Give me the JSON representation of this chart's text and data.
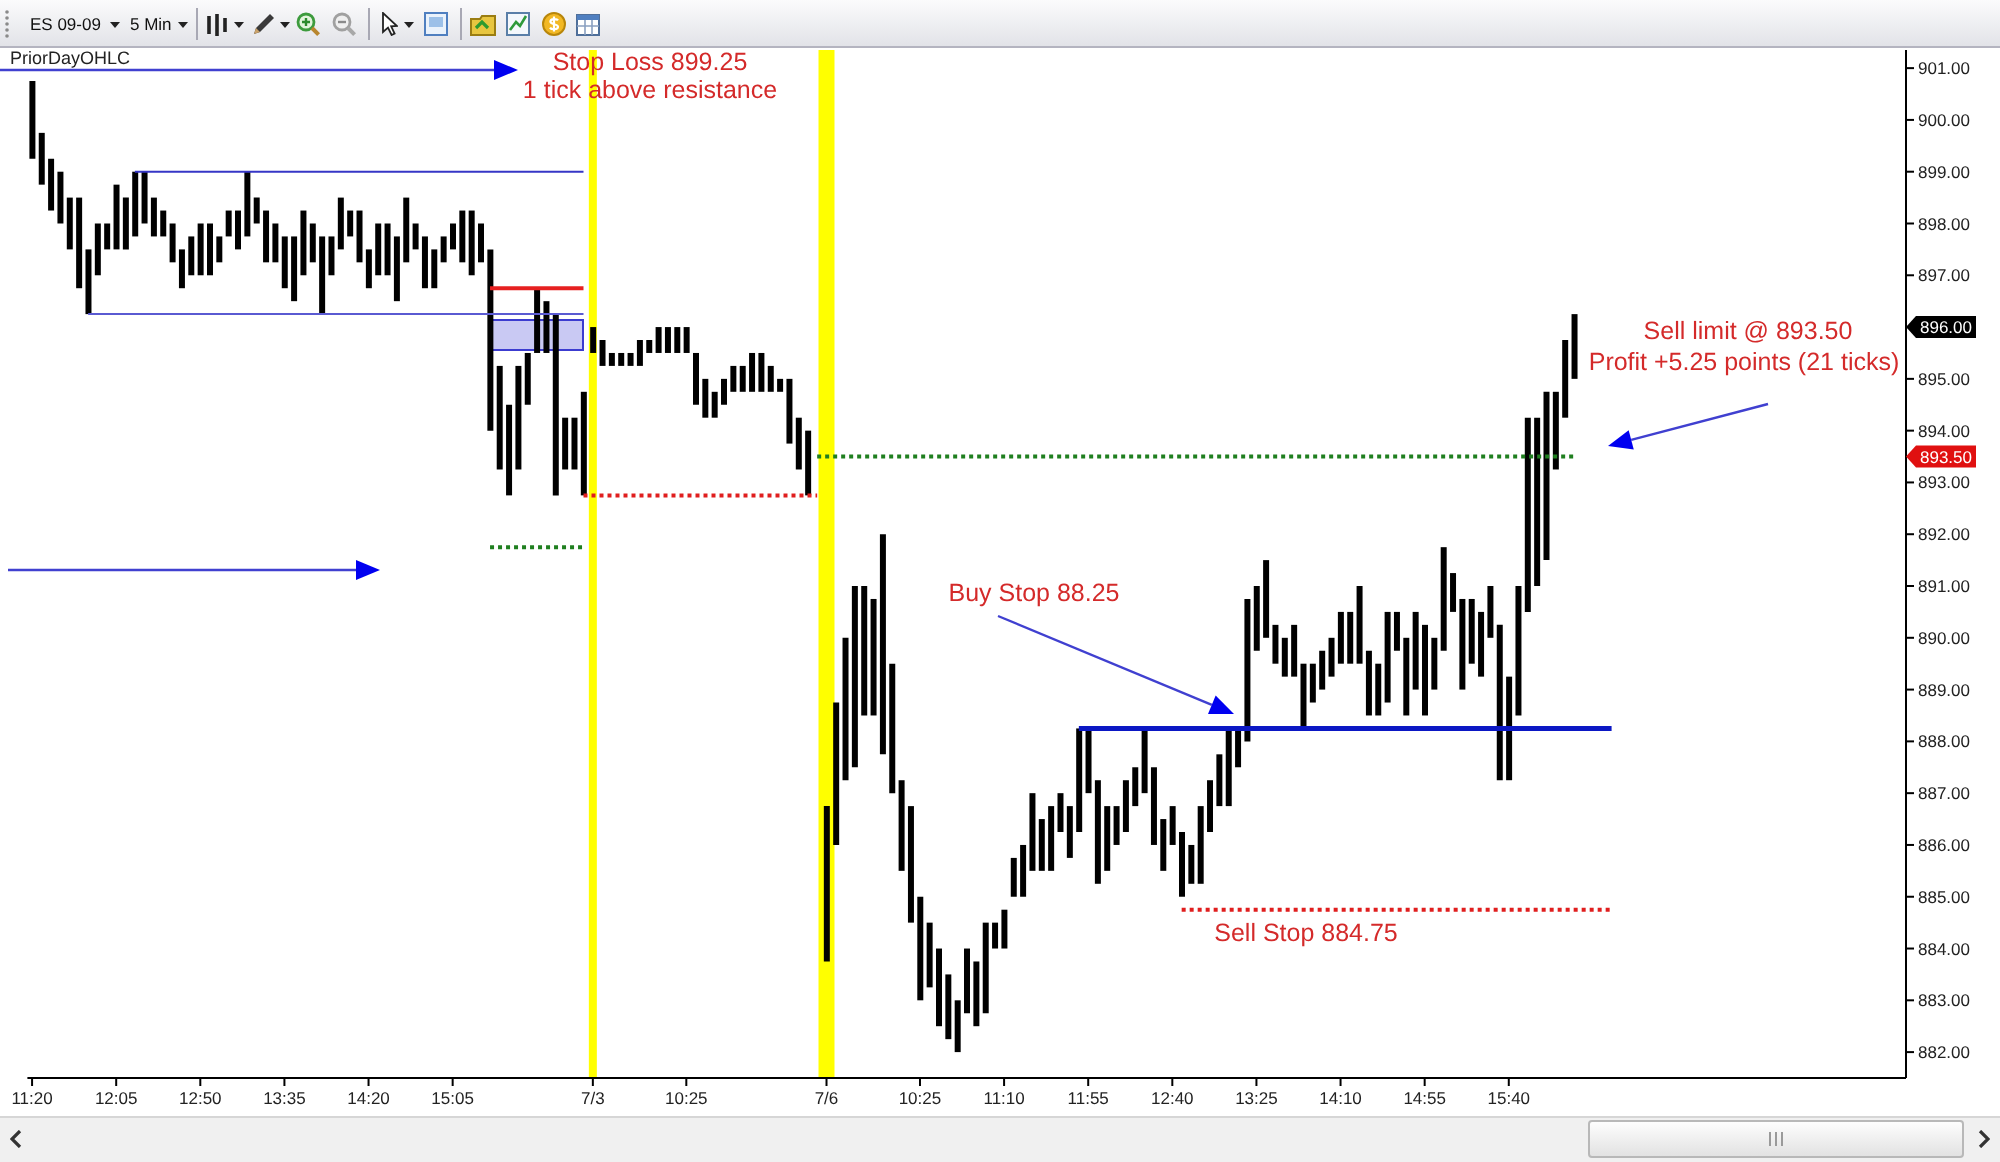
{
  "chart_data": {
    "type": "bar",
    "categories": [
      "11:20",
      null,
      null,
      null,
      null,
      null,
      null,
      null,
      null,
      "12:05",
      null,
      null,
      null,
      null,
      null,
      null,
      null,
      null,
      "12:50",
      null,
      null,
      null,
      null,
      null,
      null,
      null,
      null,
      "13:35",
      null,
      null,
      null,
      null,
      null,
      null,
      null,
      null,
      "14:20",
      null,
      null,
      null,
      null,
      null,
      null,
      null,
      null,
      "15:05",
      null,
      null,
      null,
      null,
      null,
      null,
      null,
      null,
      null,
      null,
      null,
      null,
      null,
      null,
      "7/3",
      null,
      null,
      null,
      null,
      null,
      null,
      null,
      null,
      null,
      "10:25",
      null,
      null,
      null,
      null,
      null,
      null,
      null,
      null,
      null,
      null,
      null,
      null,
      null,
      null,
      "7/6",
      null,
      null,
      null,
      null,
      null,
      null,
      null,
      null,
      null,
      "10:25",
      null,
      null,
      null,
      null,
      null,
      null,
      null,
      null,
      "11:10",
      null,
      null,
      null,
      null,
      null,
      null,
      null,
      null,
      "11:55",
      null,
      null,
      null,
      null,
      null,
      null,
      null,
      null,
      "12:40",
      null,
      null,
      null,
      null,
      null,
      null,
      null,
      null,
      "13:25",
      null,
      null,
      null,
      null,
      null,
      null,
      null,
      null,
      "14:10",
      null,
      null,
      null,
      null,
      null,
      null,
      null,
      null,
      "14:55",
      null,
      null,
      null,
      null,
      null,
      null,
      null,
      null,
      "15:40",
      null,
      null,
      null,
      null,
      null,
      null,
      null,
      null,
      null,
      null,
      null,
      null,
      null,
      null,
      null,
      null,
      null,
      null,
      null,
      null,
      null,
      null,
      null,
      null,
      null,
      null,
      null,
      null,
      null,
      null,
      null,
      null,
      null,
      null,
      null,
      null,
      null,
      null,
      null,
      null,
      null,
      null
    ],
    "series": [
      {
        "color": "#000000",
        "base": [
          899.25,
          898.75,
          898.25,
          898,
          897.5,
          896.75,
          896.25,
          897,
          897.5,
          897.5,
          897.5,
          897.75,
          898,
          897.75,
          897.75,
          897.25,
          896.75,
          897,
          897,
          897,
          897.25,
          897.75,
          897.5,
          897.75,
          898,
          897.25,
          897.25,
          896.75,
          896.5,
          897,
          897.25,
          896.25,
          897,
          897.5,
          897.75,
          897.25,
          896.75,
          897,
          897,
          896.5,
          897.25,
          897.5,
          896.75,
          896.75,
          897.25,
          897.5,
          897.25,
          897,
          897.25,
          894,
          893.25,
          892.75,
          893.25,
          894.5,
          895.5,
          895.5,
          892.75,
          893.25,
          893.25,
          892.75,
          895.5,
          895.25,
          895.25,
          895.25,
          895.25,
          895.25,
          895.5,
          895.5,
          895.5,
          895.5,
          895.5,
          894.5,
          894.25,
          894.25,
          894.5,
          894.75,
          894.75,
          894.75,
          894.75,
          894.75,
          894.75,
          893.75,
          893.25,
          892.75,
          null,
          883.75,
          886,
          887.25,
          887.5,
          888.5,
          888.5,
          887.75,
          887,
          885.5,
          884.5,
          883,
          883.25,
          882.5,
          882.25,
          882,
          882.75,
          882.5,
          882.75,
          884,
          884,
          885,
          885,
          885.5,
          885.5,
          885.5,
          886.25,
          885.75,
          886.25,
          887,
          885.25,
          885.5,
          886,
          886.25,
          886.75,
          887,
          886,
          885.5,
          886,
          885,
          885.25,
          885.25,
          886.25,
          886.75,
          886.75,
          887.5,
          888,
          889.75,
          890,
          889.5,
          889.25,
          889.25,
          888.25,
          888.75,
          889,
          889.25,
          889.5,
          889.5,
          889.5,
          888.5,
          888.5,
          888.75,
          889.75,
          888.5,
          889,
          888.5,
          889,
          889.75,
          890.5,
          889,
          889.5,
          889.25,
          890,
          887.25,
          887.25,
          888.5,
          890.5,
          891,
          891.5,
          893.25,
          894.25,
          895,
          null,
          null,
          null,
          null,
          null,
          null,
          null,
          null,
          null,
          null,
          null,
          null,
          null,
          null,
          null,
          null,
          null,
          null,
          null,
          null,
          null,
          null,
          null,
          null,
          null,
          null,
          null,
          null,
          null,
          null,
          null,
          null,
          null,
          null,
          null
        ],
        "values": [
          1.5,
          1,
          1,
          1,
          1,
          1.75,
          1.25,
          1,
          0.5,
          1.25,
          1,
          1.25,
          1,
          0.75,
          0.5,
          0.75,
          0.75,
          0.75,
          1,
          1,
          0.5,
          0.5,
          0.75,
          1.25,
          0.5,
          1,
          0.75,
          1,
          1.25,
          1.25,
          0.75,
          1.5,
          0.75,
          1,
          0.5,
          1,
          0.75,
          1,
          1,
          1.25,
          1.25,
          0.5,
          1,
          0.75,
          0.5,
          0.5,
          1,
          1.25,
          0.75,
          3.5,
          2,
          1.75,
          2,
          1,
          1.25,
          1,
          3.5,
          1,
          1,
          2,
          0.5,
          0.5,
          0.25,
          0.25,
          0.25,
          0.5,
          0.25,
          0.5,
          0.5,
          0.5,
          0.5,
          1,
          0.75,
          0.5,
          0.5,
          0.5,
          0.5,
          0.75,
          0.75,
          0.5,
          0.25,
          1.25,
          1,
          1.25,
          null,
          3,
          2.75,
          2.75,
          3.5,
          2.5,
          2.25,
          4.25,
          2.5,
          1.75,
          2.25,
          2,
          1.25,
          1.5,
          1.25,
          1,
          1.25,
          1.25,
          1.75,
          0.5,
          0.75,
          0.75,
          1,
          1.5,
          1,
          1.25,
          0.75,
          1,
          2,
          1.25,
          2,
          1.25,
          0.75,
          1,
          0.75,
          1.25,
          1.5,
          1,
          0.75,
          1.25,
          0.75,
          1.5,
          1,
          1,
          1.5,
          0.75,
          2.75,
          1.25,
          1.5,
          0.75,
          0.75,
          1,
          1.25,
          0.75,
          0.75,
          0.75,
          1,
          1,
          1.5,
          1.25,
          1,
          1.75,
          0.75,
          1.5,
          1.5,
          1.75,
          1,
          2,
          0.75,
          1.75,
          1.25,
          1.25,
          1,
          3,
          2,
          2.5,
          3.75,
          3.25,
          3.25,
          1.5,
          1.5,
          1.25,
          null,
          null,
          null,
          null,
          null,
          null,
          null,
          null,
          null,
          null,
          null,
          null,
          null,
          null,
          null,
          null,
          null,
          null,
          null,
          null,
          null,
          null,
          null,
          null,
          null,
          null,
          null,
          null,
          null,
          null,
          null,
          null,
          null,
          null,
          null
        ]
      },
      {
        "type": "line",
        "color": "#3636c6",
        "line_style": "solid",
        "values": [
          null,
          null,
          null,
          null,
          null,
          null,
          null,
          null,
          null,
          null,
          null,
          899,
          899,
          899,
          899,
          899,
          899,
          899,
          899,
          899,
          899,
          899,
          899,
          899,
          899,
          899,
          899,
          899,
          899,
          899,
          899,
          899,
          899,
          899,
          899,
          899,
          899,
          899,
          899,
          899,
          899,
          899,
          899,
          899,
          899,
          899,
          899,
          899,
          899,
          899,
          899,
          899,
          899,
          899,
          899,
          899,
          899,
          899,
          899,
          899,
          null,
          null,
          null,
          null,
          null,
          null,
          null,
          null,
          null,
          null,
          null,
          null,
          null,
          null,
          null,
          null,
          null,
          null,
          null,
          null,
          null,
          null,
          null,
          null,
          null,
          null,
          null,
          null,
          null,
          null,
          null,
          null,
          null,
          null,
          null,
          null,
          null,
          null,
          null,
          null,
          null,
          null,
          null,
          null,
          null,
          null,
          null,
          null,
          null,
          null,
          null,
          null,
          null,
          null,
          null,
          null,
          null,
          null,
          null,
          null,
          null,
          null,
          null,
          null,
          null,
          null,
          null,
          null,
          null,
          null,
          null,
          null,
          null,
          null,
          null,
          null,
          null,
          null,
          null,
          null,
          null,
          null,
          null,
          null,
          null,
          null,
          null,
          null,
          null,
          null,
          null,
          null,
          null,
          null,
          null,
          null,
          null,
          null,
          null,
          null,
          null,
          null,
          null,
          null,
          null,
          null,
          null,
          null,
          null,
          null,
          null,
          null,
          null,
          null,
          null,
          null,
          null,
          null,
          null,
          null,
          null,
          null,
          null,
          null,
          null,
          null,
          null,
          null,
          null,
          null,
          null,
          null,
          null,
          null,
          null,
          null,
          null,
          null,
          null,
          null,
          null
        ]
      },
      {
        "type": "line",
        "color": "#5a5ad2",
        "line_style": "solid",
        "values": [
          null,
          null,
          null,
          null,
          null,
          null,
          896.25,
          896.25,
          896.25,
          896.25,
          896.25,
          896.25,
          896.25,
          896.25,
          896.25,
          896.25,
          896.25,
          896.25,
          896.25,
          896.25,
          896.25,
          896.25,
          896.25,
          896.25,
          896.25,
          896.25,
          896.25,
          896.25,
          896.25,
          896.25,
          896.25,
          896.25,
          896.25,
          896.25,
          896.25,
          896.25,
          896.25,
          896.25,
          896.25,
          896.25,
          896.25,
          896.25,
          896.25,
          896.25,
          896.25,
          896.25,
          896.25,
          896.25,
          896.25,
          896.25,
          896.25,
          896.25,
          896.25,
          896.25,
          896.25,
          896.25,
          896.25,
          896.25,
          896.25,
          896.25,
          null,
          null,
          null,
          null,
          null,
          null,
          null,
          null,
          null,
          null,
          null,
          null,
          null,
          null,
          null,
          null,
          null,
          null,
          null,
          null,
          null,
          null,
          null,
          null,
          null,
          null,
          null,
          null,
          null,
          null,
          null,
          null,
          null,
          null,
          null,
          null,
          null,
          null,
          null,
          null,
          null,
          null,
          null,
          null,
          null,
          null,
          null,
          null,
          null,
          null,
          null,
          null,
          null,
          null,
          null,
          null,
          null,
          null,
          null,
          null,
          null,
          null,
          null,
          null,
          null,
          null,
          null,
          null,
          null,
          null,
          null,
          null,
          null,
          null,
          null,
          null,
          null,
          null,
          null,
          null,
          null,
          null,
          null,
          null,
          null,
          null,
          null,
          null,
          null,
          null,
          null,
          null,
          null,
          null,
          null,
          null,
          null,
          null,
          null,
          null,
          null,
          null,
          null,
          null,
          null,
          null,
          null,
          null,
          null,
          null,
          null,
          null,
          null,
          null,
          null,
          null,
          null,
          null,
          null,
          null,
          null,
          null,
          null,
          null,
          null,
          null,
          null,
          null,
          null,
          null,
          null,
          null,
          null,
          null,
          null,
          null,
          null,
          null,
          null,
          null,
          null
        ]
      },
      {
        "type": "line",
        "color": "#e62020",
        "line_style": "solid",
        "values": [
          null,
          null,
          null,
          null,
          null,
          null,
          null,
          null,
          null,
          null,
          null,
          null,
          null,
          null,
          null,
          null,
          null,
          null,
          null,
          null,
          null,
          null,
          null,
          null,
          null,
          null,
          null,
          null,
          null,
          null,
          null,
          null,
          null,
          null,
          null,
          null,
          null,
          null,
          null,
          null,
          null,
          null,
          null,
          null,
          null,
          null,
          null,
          null,
          null,
          896.75,
          896.75,
          896.75,
          896.75,
          896.75,
          896.75,
          896.75,
          896.75,
          896.75,
          896.75,
          896.75,
          null,
          null,
          null,
          null,
          null,
          null,
          null,
          null,
          null,
          null,
          null,
          null,
          null,
          null,
          null,
          null,
          null,
          null,
          null,
          null,
          null,
          null,
          null,
          null,
          null,
          null,
          null,
          null,
          null,
          null,
          null,
          null,
          null,
          null,
          null,
          null,
          null,
          null,
          null,
          null,
          null,
          null,
          null,
          null,
          null,
          null,
          null,
          null,
          null,
          null,
          null,
          null,
          null,
          null,
          null,
          null,
          null,
          null,
          null,
          null,
          null,
          null,
          null,
          null,
          null,
          null,
          null,
          null,
          null,
          null,
          null,
          null,
          null,
          null,
          null,
          null,
          null,
          null,
          null,
          null,
          null,
          null,
          null,
          null,
          null,
          null,
          null,
          null,
          null,
          null,
          null,
          null,
          null,
          null,
          null,
          null,
          null,
          null,
          null,
          null,
          null,
          null,
          null,
          null,
          null,
          null,
          null,
          null,
          null,
          null,
          null,
          null,
          null,
          null,
          null,
          null,
          null,
          null,
          null,
          null,
          null,
          null,
          null,
          null,
          null,
          null,
          null,
          null,
          null,
          null,
          null,
          null,
          null,
          null,
          null,
          null,
          null,
          null,
          null,
          null,
          null
        ]
      },
      {
        "type": "line",
        "color": "#1f7f1f",
        "line_style": "dotted",
        "values": [
          null,
          null,
          null,
          null,
          null,
          null,
          null,
          null,
          null,
          null,
          null,
          null,
          null,
          null,
          null,
          null,
          null,
          null,
          null,
          null,
          null,
          null,
          null,
          null,
          null,
          null,
          null,
          null,
          null,
          null,
          null,
          null,
          null,
          null,
          null,
          null,
          null,
          null,
          null,
          null,
          null,
          null,
          null,
          null,
          null,
          null,
          null,
          null,
          null,
          891.75,
          891.75,
          891.75,
          891.75,
          891.75,
          891.75,
          891.75,
          891.75,
          891.75,
          891.75,
          891.75,
          null,
          null,
          null,
          null,
          null,
          null,
          null,
          null,
          null,
          null,
          null,
          null,
          null,
          null,
          null,
          null,
          null,
          null,
          null,
          null,
          null,
          null,
          null,
          null,
          null,
          null,
          null,
          null,
          null,
          null,
          null,
          null,
          null,
          null,
          null,
          null,
          null,
          null,
          null,
          null,
          null,
          null,
          null,
          null,
          null,
          null,
          null,
          null,
          null,
          null,
          null,
          null,
          null,
          null,
          null,
          null,
          null,
          null,
          null,
          null,
          null,
          null,
          null,
          null,
          null,
          null,
          null,
          null,
          null,
          null,
          null,
          null,
          null,
          null,
          null,
          null,
          null,
          null,
          null,
          null,
          null,
          null,
          null,
          null,
          null,
          null,
          null,
          null,
          null,
          null,
          null,
          null,
          null,
          null,
          null,
          null,
          null,
          null,
          null,
          null,
          null,
          null,
          null,
          null,
          null,
          null,
          null,
          null,
          null,
          null,
          null,
          null,
          null,
          null,
          null,
          null,
          null,
          null,
          null,
          null,
          null,
          null,
          null,
          null,
          null,
          null,
          null,
          null,
          null,
          null,
          null,
          null,
          null,
          null,
          null,
          null,
          null,
          null,
          null,
          null,
          null
        ]
      },
      {
        "type": "line",
        "color": "#e01e1e",
        "line_style": "dotted",
        "values": [
          null,
          null,
          null,
          null,
          null,
          null,
          null,
          null,
          null,
          null,
          null,
          null,
          null,
          null,
          null,
          null,
          null,
          null,
          null,
          null,
          null,
          null,
          null,
          null,
          null,
          null,
          null,
          null,
          null,
          null,
          null,
          null,
          null,
          null,
          null,
          null,
          null,
          null,
          null,
          null,
          null,
          null,
          null,
          null,
          null,
          null,
          null,
          null,
          null,
          null,
          null,
          null,
          null,
          null,
          null,
          null,
          null,
          null,
          null,
          892.75,
          892.75,
          892.75,
          892.75,
          892.75,
          892.75,
          892.75,
          892.75,
          892.75,
          892.75,
          892.75,
          892.75,
          892.75,
          892.75,
          892.75,
          892.75,
          892.75,
          892.75,
          892.75,
          892.75,
          892.75,
          892.75,
          892.75,
          892.75,
          892.75,
          892.75,
          null,
          null,
          null,
          null,
          null,
          null,
          null,
          null,
          null,
          null,
          null,
          null,
          null,
          null,
          null,
          null,
          null,
          null,
          null,
          null,
          null,
          null,
          null,
          null,
          null,
          null,
          null,
          null,
          null,
          null,
          null,
          null,
          null,
          null,
          null,
          null,
          null,
          null,
          null,
          null,
          null,
          null,
          null,
          null,
          null,
          null,
          null,
          null,
          null,
          null,
          null,
          null,
          null,
          null,
          null,
          null,
          null,
          null,
          null,
          null,
          null,
          null,
          null,
          null,
          null,
          null,
          null,
          null,
          null,
          null,
          null,
          null,
          null,
          null,
          null,
          null,
          null,
          null,
          null,
          null,
          null,
          null,
          null,
          null,
          null,
          null,
          null,
          null,
          null,
          null,
          null,
          null,
          null,
          null,
          null,
          null,
          null,
          null,
          null,
          null,
          null,
          null,
          null,
          null,
          null,
          null,
          null,
          null,
          null,
          null,
          null,
          null,
          null,
          null,
          null,
          null
        ]
      },
      {
        "type": "line",
        "color": "#1f7f1f",
        "line_style": "dotted",
        "values": [
          null,
          null,
          null,
          null,
          null,
          null,
          null,
          null,
          null,
          null,
          null,
          null,
          null,
          null,
          null,
          null,
          null,
          null,
          null,
          null,
          null,
          null,
          null,
          null,
          null,
          null,
          null,
          null,
          null,
          null,
          null,
          null,
          null,
          null,
          null,
          null,
          null,
          null,
          null,
          null,
          null,
          null,
          null,
          null,
          null,
          null,
          null,
          null,
          null,
          null,
          null,
          null,
          null,
          null,
          null,
          null,
          null,
          null,
          null,
          null,
          null,
          null,
          null,
          null,
          null,
          null,
          null,
          null,
          null,
          null,
          null,
          null,
          null,
          null,
          null,
          null,
          null,
          null,
          null,
          null,
          null,
          null,
          null,
          null,
          893.5,
          893.5,
          893.5,
          893.5,
          893.5,
          893.5,
          893.5,
          893.5,
          893.5,
          893.5,
          893.5,
          893.5,
          893.5,
          893.5,
          893.5,
          893.5,
          893.5,
          893.5,
          893.5,
          893.5,
          893.5,
          893.5,
          893.5,
          893.5,
          893.5,
          893.5,
          893.5,
          893.5,
          893.5,
          893.5,
          893.5,
          893.5,
          893.5,
          893.5,
          893.5,
          893.5,
          893.5,
          893.5,
          893.5,
          893.5,
          893.5,
          893.5,
          893.5,
          893.5,
          893.5,
          893.5,
          893.5,
          893.5,
          893.5,
          893.5,
          893.5,
          893.5,
          893.5,
          893.5,
          893.5,
          893.5,
          893.5,
          893.5,
          893.5,
          893.5,
          893.5,
          893.5,
          893.5,
          893.5,
          893.5,
          893.5,
          893.5,
          893.5,
          893.5,
          893.5,
          893.5,
          893.5,
          893.5,
          893.5,
          893.5,
          893.5,
          893.5,
          893.5,
          893.5,
          893.5,
          893.5,
          893.5,
          null,
          null,
          null,
          null,
          null,
          null,
          null,
          null,
          null,
          null,
          null,
          null,
          null,
          null,
          null,
          null,
          null,
          null,
          null,
          null,
          null,
          null,
          null,
          null,
          null,
          null,
          null,
          null,
          null,
          null,
          null,
          null,
          null,
          null,
          null
        ]
      },
      {
        "type": "line",
        "color": "#0b17c4",
        "line_style": "solid",
        "values": [
          null,
          null,
          null,
          null,
          null,
          null,
          null,
          null,
          null,
          null,
          null,
          null,
          null,
          null,
          null,
          null,
          null,
          null,
          null,
          null,
          null,
          null,
          null,
          null,
          null,
          null,
          null,
          null,
          null,
          null,
          null,
          null,
          null,
          null,
          null,
          null,
          null,
          null,
          null,
          null,
          null,
          null,
          null,
          null,
          null,
          null,
          null,
          null,
          null,
          null,
          null,
          null,
          null,
          null,
          null,
          null,
          null,
          null,
          null,
          null,
          null,
          null,
          null,
          null,
          null,
          null,
          null,
          null,
          null,
          null,
          null,
          null,
          null,
          null,
          null,
          null,
          null,
          null,
          null,
          null,
          null,
          null,
          null,
          null,
          null,
          null,
          null,
          null,
          null,
          null,
          null,
          null,
          null,
          null,
          null,
          null,
          null,
          null,
          null,
          null,
          null,
          null,
          null,
          null,
          null,
          null,
          null,
          null,
          null,
          null,
          null,
          null,
          888.25,
          888.25,
          888.25,
          888.25,
          888.25,
          888.25,
          888.25,
          888.25,
          888.25,
          888.25,
          888.25,
          888.25,
          888.25,
          888.25,
          888.25,
          888.25,
          888.25,
          888.25,
          888.25,
          888.25,
          888.25,
          888.25,
          888.25,
          888.25,
          888.25,
          888.25,
          888.25,
          888.25,
          888.25,
          888.25,
          888.25,
          888.25,
          888.25,
          888.25,
          888.25,
          888.25,
          888.25,
          888.25,
          888.25,
          888.25,
          888.25,
          888.25,
          888.25,
          888.25,
          888.25,
          888.25,
          888.25,
          888.25,
          888.25,
          888.25,
          888.25,
          888.25,
          888.25,
          888.25,
          888.25,
          888.25,
          888.25,
          888.25,
          null,
          null,
          null,
          null,
          null,
          null,
          null,
          null,
          null,
          null,
          null,
          null,
          null,
          null,
          null,
          null,
          null,
          null,
          null,
          null,
          null,
          null,
          null,
          null,
          null,
          null,
          null,
          null,
          null,
          null,
          null
        ]
      },
      {
        "type": "line",
        "color": "#e01e1e",
        "line_style": "dotted",
        "values": [
          null,
          null,
          null,
          null,
          null,
          null,
          null,
          null,
          null,
          null,
          null,
          null,
          null,
          null,
          null,
          null,
          null,
          null,
          null,
          null,
          null,
          null,
          null,
          null,
          null,
          null,
          null,
          null,
          null,
          null,
          null,
          null,
          null,
          null,
          null,
          null,
          null,
          null,
          null,
          null,
          null,
          null,
          null,
          null,
          null,
          null,
          null,
          null,
          null,
          null,
          null,
          null,
          null,
          null,
          null,
          null,
          null,
          null,
          null,
          null,
          null,
          null,
          null,
          null,
          null,
          null,
          null,
          null,
          null,
          null,
          null,
          null,
          null,
          null,
          null,
          null,
          null,
          null,
          null,
          null,
          null,
          null,
          null,
          null,
          null,
          null,
          null,
          null,
          null,
          null,
          null,
          null,
          null,
          null,
          null,
          null,
          null,
          null,
          null,
          null,
          null,
          null,
          null,
          null,
          null,
          null,
          null,
          null,
          null,
          null,
          null,
          null,
          null,
          null,
          null,
          null,
          null,
          null,
          null,
          null,
          null,
          null,
          null,
          884.75,
          884.75,
          884.75,
          884.75,
          884.75,
          884.75,
          884.75,
          884.75,
          884.75,
          884.75,
          884.75,
          884.75,
          884.75,
          884.75,
          884.75,
          884.75,
          884.75,
          884.75,
          884.75,
          884.75,
          884.75,
          884.75,
          884.75,
          884.75,
          884.75,
          884.75,
          884.75,
          884.75,
          884.75,
          884.75,
          884.75,
          884.75,
          884.75,
          884.75,
          884.75,
          884.75,
          884.75,
          884.75,
          884.75,
          884.75,
          884.75,
          884.75,
          884.75,
          884.75,
          884.75,
          884.75,
          884.75,
          null,
          null,
          null,
          null,
          null,
          null,
          null,
          null,
          null,
          null,
          null,
          null,
          null,
          null,
          null,
          null,
          null,
          null,
          null,
          null,
          null,
          null,
          null,
          null,
          null,
          null,
          null,
          null,
          null,
          null,
          null
        ]
      }
    ],
    "ylim": [
      881.5,
      901.35
    ],
    "yticks": [
      {
        "value": 882,
        "label": "882.00"
      },
      {
        "value": 883,
        "label": "883.00"
      },
      {
        "value": 884,
        "label": "884.00"
      },
      {
        "value": 885,
        "label": "885.00"
      },
      {
        "value": 886,
        "label": "886.00"
      },
      {
        "value": 887,
        "label": "887.00"
      },
      {
        "value": 888,
        "label": "888.00"
      },
      {
        "value": 889,
        "label": "889.00"
      },
      {
        "value": 890,
        "label": "890.00"
      },
      {
        "value": 891,
        "label": "891.00"
      },
      {
        "value": 892,
        "label": "892.00"
      },
      {
        "value": 893,
        "label": "893.00"
      },
      {
        "value": 894,
        "label": "894.00"
      },
      {
        "value": 895,
        "label": "895.00"
      },
      {
        "value": 896,
        "label": null
      },
      {
        "value": 897,
        "label": "897.00"
      },
      {
        "value": 898,
        "label": "898.00"
      },
      {
        "value": 899,
        "label": "899.00"
      },
      {
        "value": 900,
        "label": "900.00"
      },
      {
        "value": 901,
        "label": "901.00"
      }
    ],
    "ref_lines": [
      {
        "axis": "x",
        "value": "7/3",
        "color": "#ffff00"
      },
      {
        "axis": "x",
        "value": "7/6",
        "color": "#ffff00"
      }
    ],
    "annotations": [
      "Stop Loss 899.25",
      "1 tick above resistance",
      "Buy Stop 88.25",
      "Sell Stop 884.75",
      "Sell limit @ 893.50",
      "Profit +5.25 points (21 ticks)",
      "PriorDayOHLC",
      "896.00",
      "893.50",
      "ES 09-09",
      "5 Min"
    ]
  }
}
